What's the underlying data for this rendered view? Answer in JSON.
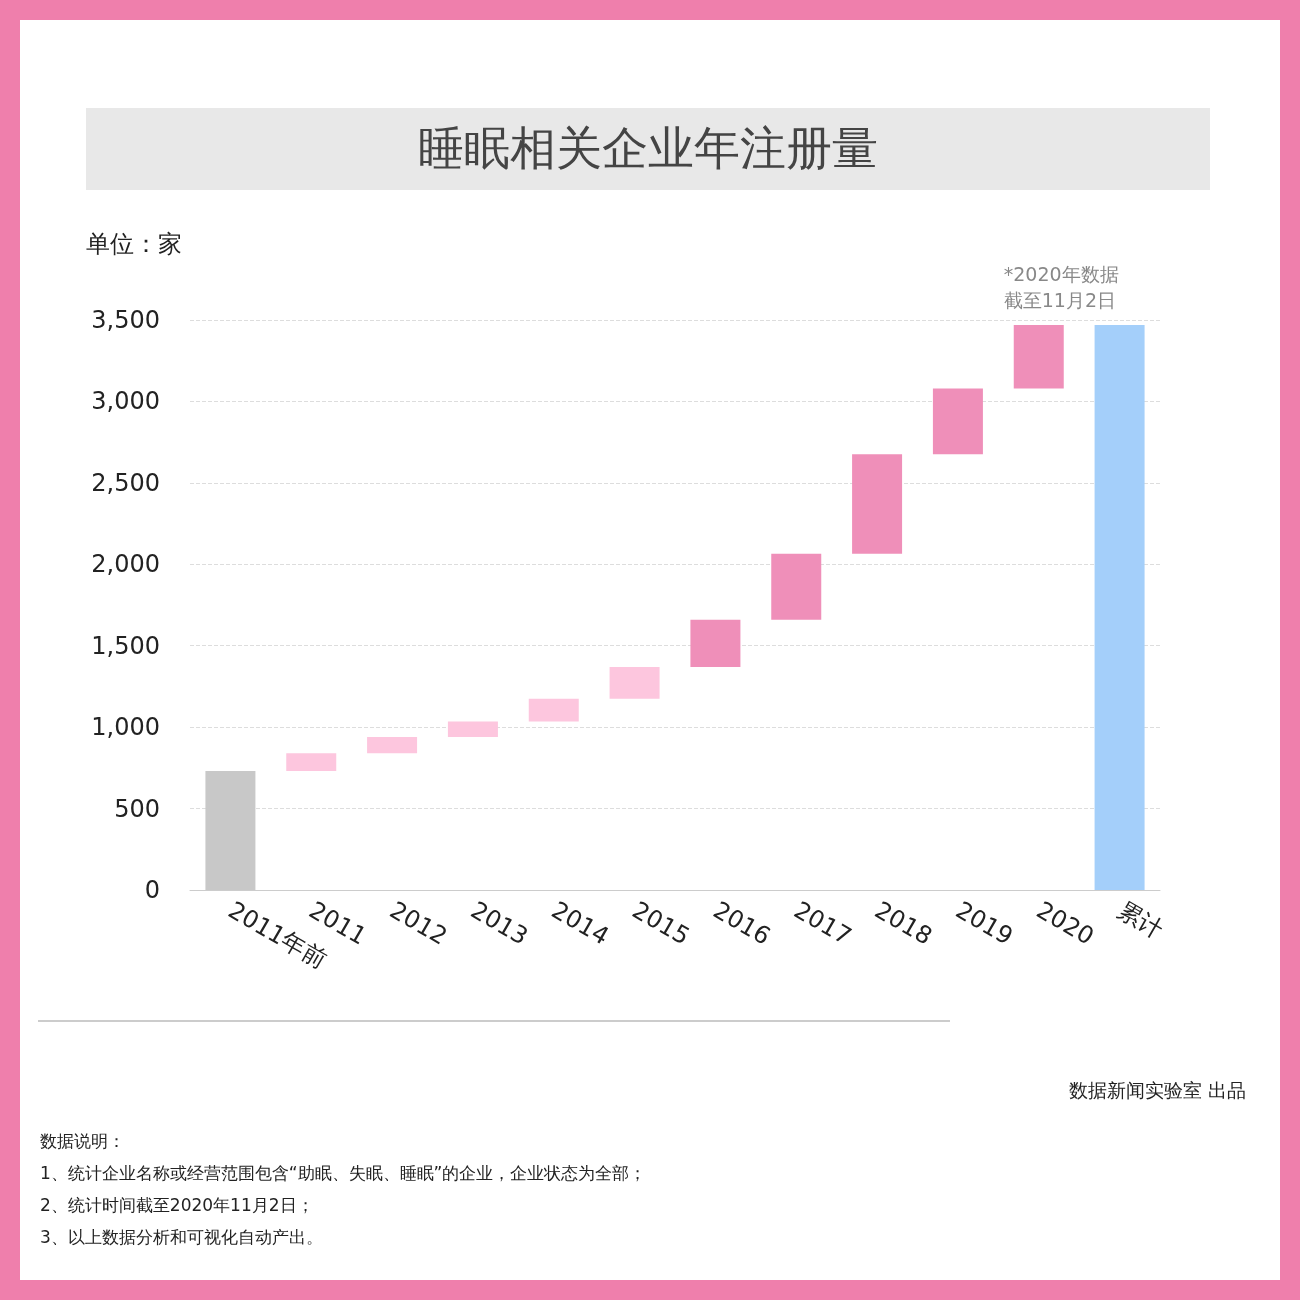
{
  "chart_data": {
    "type": "bar",
    "title": "睡眠相关企业年注册量",
    "ylabel": "单位：家",
    "categories": [
      "2011年前",
      "2011",
      "2012",
      "2013",
      "2014",
      "2015",
      "2016",
      "2017",
      "2018",
      "2019",
      "2020",
      "累计"
    ],
    "base": [
      0,
      730,
      840,
      940,
      1035,
      1175,
      1370,
      1660,
      2065,
      2675,
      3080,
      0
    ],
    "values": [
      730,
      110,
      100,
      95,
      140,
      195,
      290,
      405,
      610,
      405,
      390,
      3470
    ],
    "colors": [
      "#c8c8c8",
      "#fdc6de",
      "#fdc6de",
      "#fdc6de",
      "#fdc6de",
      "#fdc6de",
      "#ef8fb9",
      "#ef8fb9",
      "#ef8fb9",
      "#ef8fb9",
      "#ef8fb9",
      "#a4cffa"
    ],
    "ylim": [
      0,
      3500
    ],
    "yticks": [
      0,
      500,
      {
        "value": 1000,
        "label": "1,000"
      },
      {
        "value": 1500,
        "label": "1,500"
      },
      {
        "value": 2000,
        "label": "2,000"
      },
      {
        "value": 2500,
        "label": "2,500"
      },
      {
        "value": 3000,
        "label": "3,000"
      },
      {
        "value": 3500,
        "label": "3,500"
      }
    ],
    "grid": "y",
    "annotations": [
      {
        "text": "*2020年数据",
        "x": "2020",
        "y": 3470
      },
      {
        "text": "截至11月2日",
        "x": "2020",
        "y": 3470
      },
      "数据说明：",
      "1、统计企业名称或经营范围包含“助眠、失眠、睡眠”的企业，企业状态为全部；",
      "2、统计时间截至2020年11月2日；",
      "3、以上数据分析和可视化自动产出。",
      "数据新闻实验室 出品"
    ]
  }
}
